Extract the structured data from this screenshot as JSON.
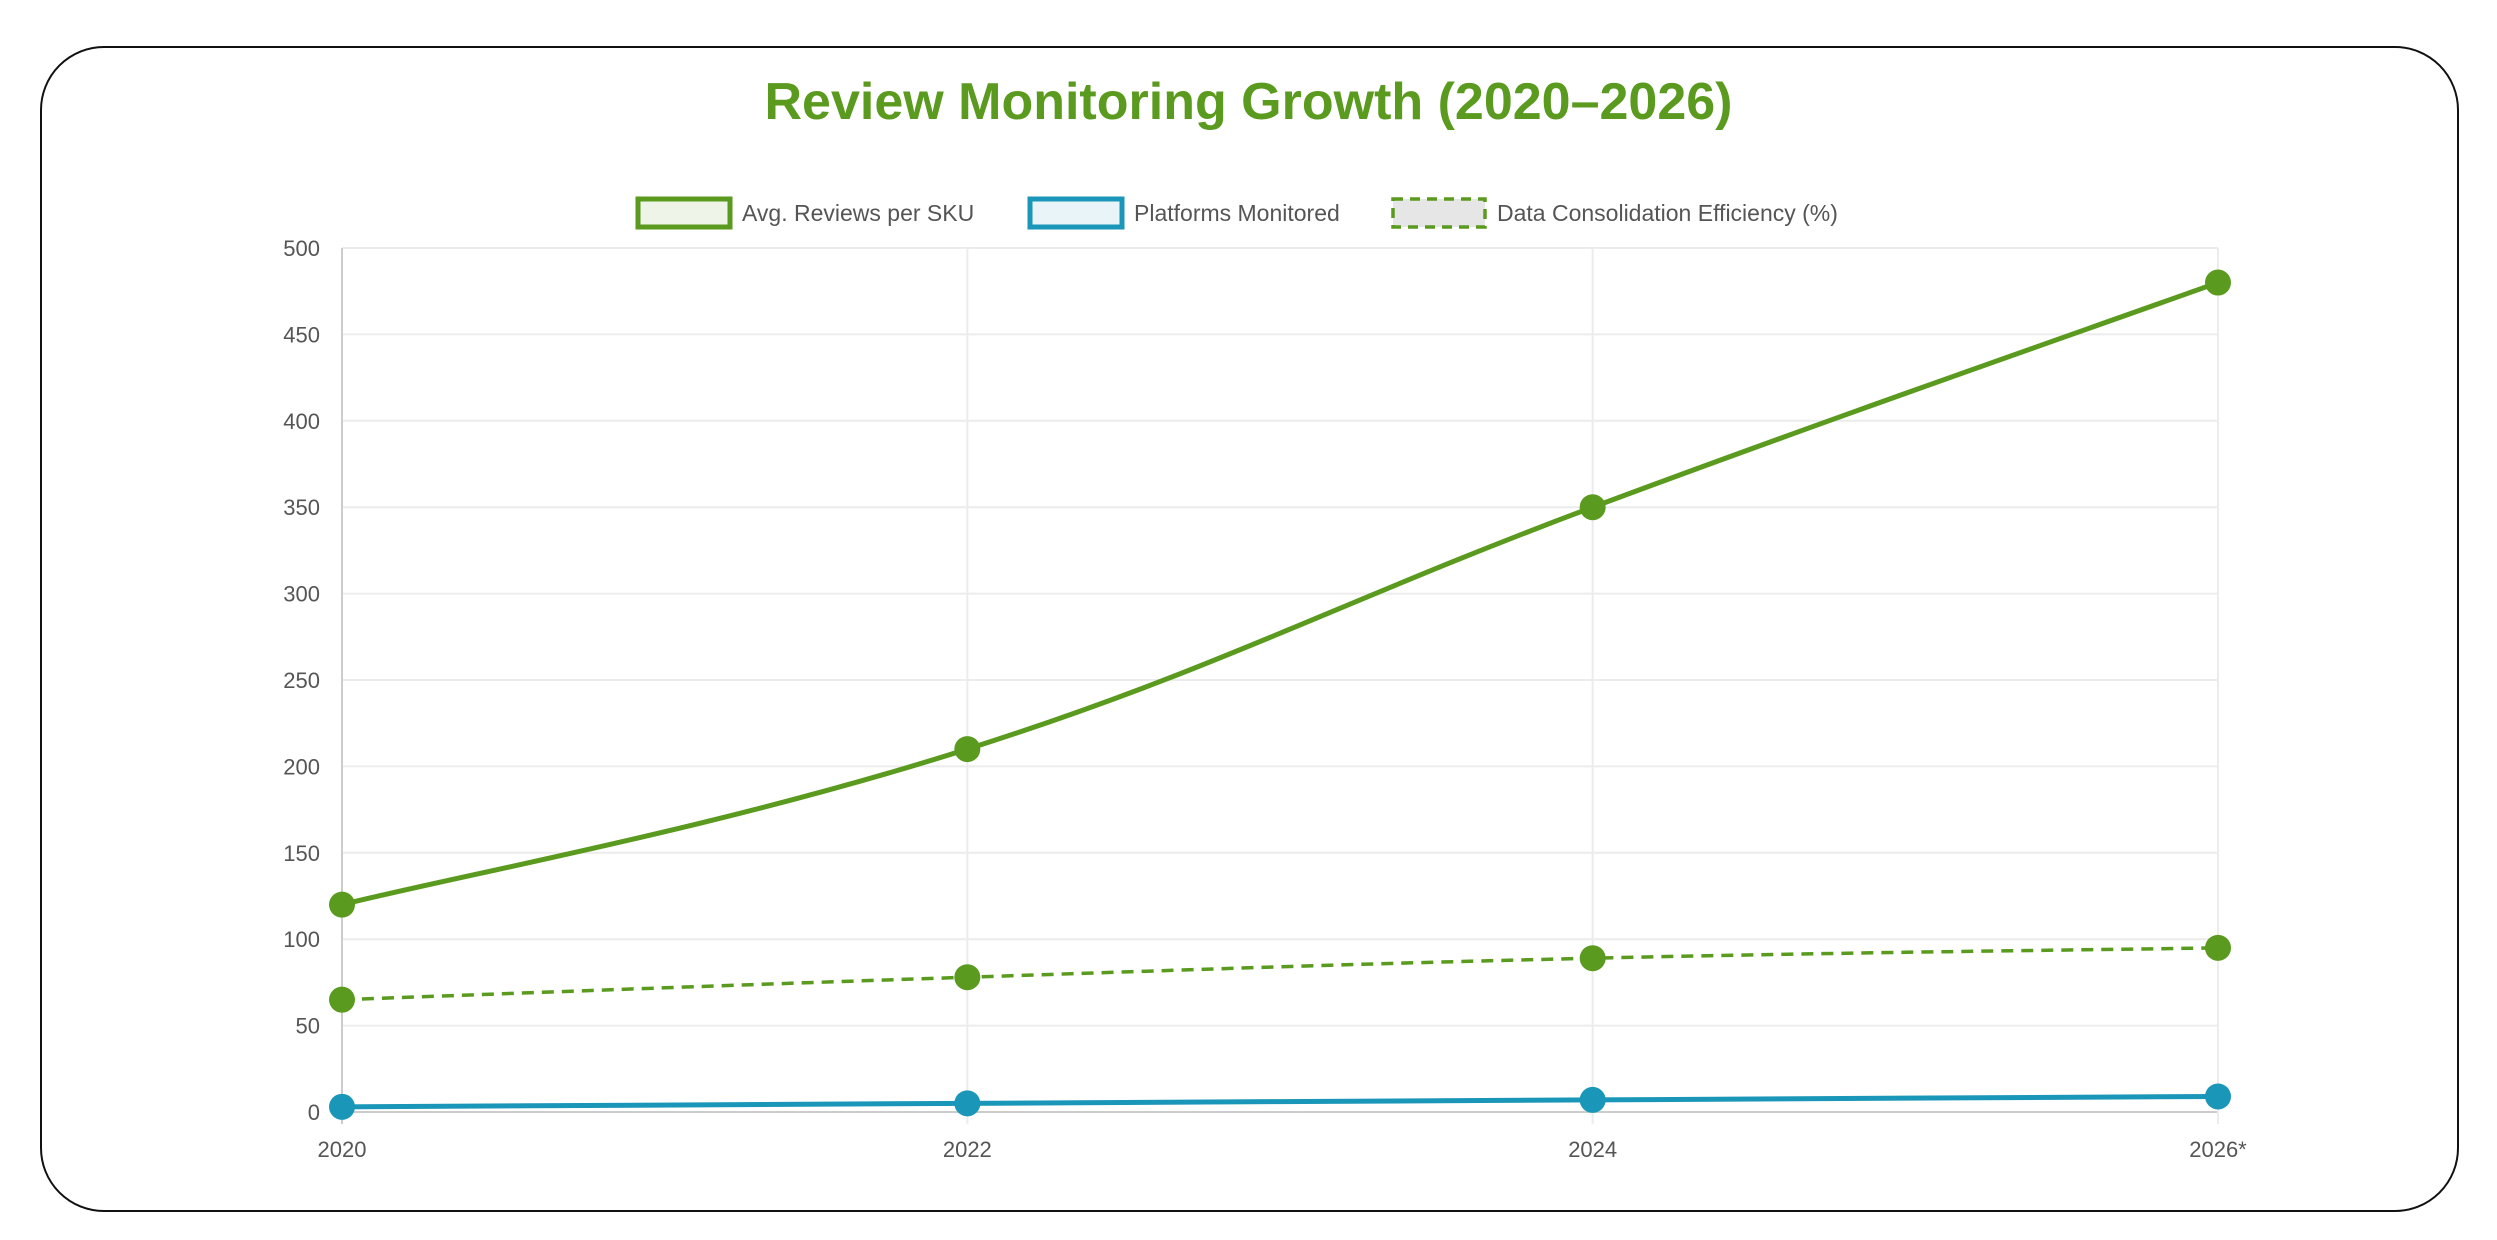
{
  "chart_data": {
    "type": "line",
    "title": "Review Monitoring Growth (2020–2026)",
    "categories": [
      "2020",
      "2022",
      "2024",
      "2026*"
    ],
    "ylim": [
      0,
      500
    ],
    "yticks": [
      0,
      50,
      100,
      150,
      200,
      250,
      300,
      350,
      400,
      450,
      500
    ],
    "grid": true,
    "legend_position": "top",
    "series": [
      {
        "name": "Avg. Reviews per SKU",
        "values": [
          120,
          210,
          350,
          480
        ],
        "color": "#5a9a1e",
        "dashed": false
      },
      {
        "name": "Platforms Monitored",
        "values": [
          3,
          5,
          7,
          9
        ],
        "color": "#1a96b8",
        "dashed": false
      },
      {
        "name": "Data Consolidation Efficiency (%)",
        "values": [
          65,
          78,
          89,
          95
        ],
        "color": "#5a9a1e",
        "dashed": true
      }
    ]
  }
}
